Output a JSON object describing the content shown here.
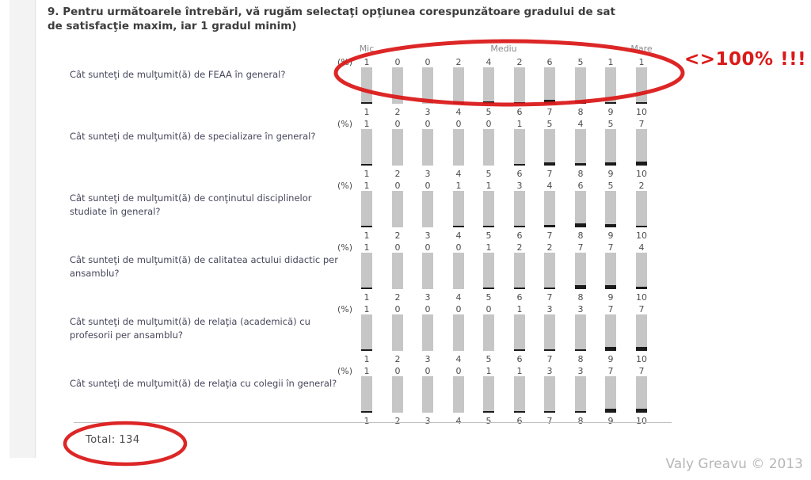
{
  "page": {
    "title_line1": "9. Pentru următoarele întrebări, vă rugăm selectaţi opţiunea corespunzătoare gradului de sat",
    "title_line2": "de satisfacţie maxim, iar 1 gradul minim)"
  },
  "scale_header": {
    "low": "Mic",
    "mid": "Mediu",
    "high": "Mare"
  },
  "percent_label": "(%)",
  "scale_points": [
    "1",
    "2",
    "3",
    "4",
    "5",
    "6",
    "7",
    "8",
    "9",
    "10"
  ],
  "questions": [
    {
      "text": "Cât sunteţi de mulţumit(ă) de FEAA în general?",
      "values": [
        1,
        0,
        0,
        2,
        4,
        2,
        6,
        5,
        1,
        1
      ]
    },
    {
      "text": "Cât sunteţi de mulţumit(ă) de specializare în general?",
      "values": [
        1,
        0,
        0,
        0,
        0,
        1,
        5,
        4,
        5,
        7
      ]
    },
    {
      "text": "Cât sunteţi de mulţumit(ă) de conţinutul disciplinelor studiate în general?",
      "values": [
        1,
        0,
        0,
        1,
        1,
        3,
        4,
        6,
        5,
        2
      ]
    },
    {
      "text": "Cât sunteţi de mulţumit(ă) de calitatea actului didactic per ansamblu?",
      "values": [
        1,
        0,
        0,
        0,
        1,
        2,
        2,
        7,
        7,
        4
      ]
    },
    {
      "text": "Cât sunteţi de mulţumit(ă) de relaţia (academică) cu profesorii per ansamblu?",
      "values": [
        1,
        0,
        0,
        0,
        0,
        1,
        3,
        3,
        7,
        7
      ]
    },
    {
      "text": "Cât sunteţi de mulţumit(ă) de relaţia cu colegii în general?",
      "values": [
        1,
        0,
        0,
        0,
        1,
        1,
        3,
        3,
        7,
        7
      ]
    }
  ],
  "total": {
    "label": "Total:",
    "value": "134"
  },
  "annotations": {
    "percent_warning": "<>100% !!!",
    "watermark": "Valy Greavu © 2013"
  },
  "colors": {
    "annotation_red": "#DB1A1A",
    "bar_fill": "#C6C6C6",
    "bar_value_fill": "#1B1B1B"
  }
}
